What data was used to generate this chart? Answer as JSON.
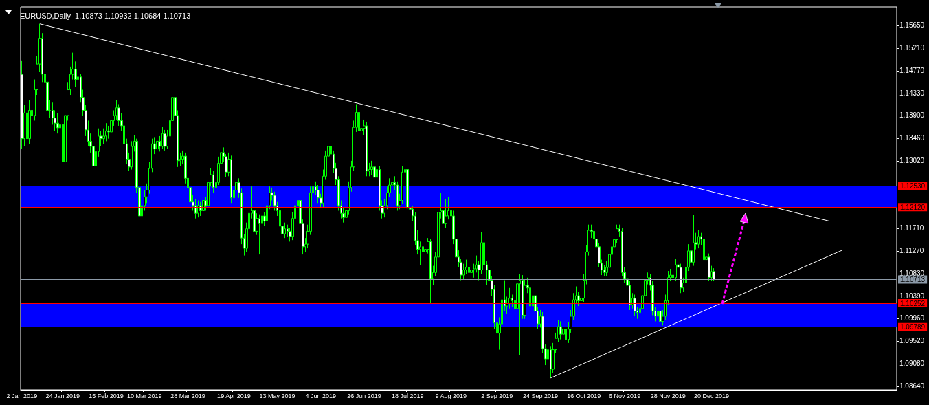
{
  "chart_data": {
    "type": "candlestick",
    "title": "EURUSD,Daily  1.10873 1.10932 1.10684 1.10713",
    "color": "#00ff00",
    "categories": [
      "2 Jan 2019",
      null,
      null,
      null,
      null,
      null,
      null,
      null,
      null,
      null,
      null,
      null,
      null,
      null,
      null,
      null,
      "24 Jan 2019",
      null,
      null,
      null,
      null,
      null,
      null,
      null,
      null,
      null,
      null,
      null,
      null,
      null,
      null,
      null,
      null,
      "15 Feb 2019",
      null,
      null,
      null,
      null,
      null,
      null,
      null,
      null,
      null,
      null,
      null,
      null,
      null,
      null,
      "10 Mar 2019",
      null,
      null,
      null,
      null,
      null,
      null,
      null,
      null,
      null,
      null,
      null,
      null,
      null,
      null,
      null,
      null,
      "28 Mar 2019",
      null,
      null,
      null,
      null,
      null,
      null,
      null,
      null,
      null,
      null,
      null,
      null,
      null,
      null,
      null,
      null,
      null,
      "19 Apr 2019",
      null,
      null,
      null,
      null,
      null,
      null,
      null,
      null,
      null,
      null,
      null,
      null,
      null,
      null,
      null,
      null,
      "13 May 2019",
      null,
      null,
      null,
      null,
      null,
      null,
      null,
      null,
      null,
      null,
      null,
      null,
      null,
      null,
      null,
      null,
      "4 Jun 2019",
      null,
      null,
      null,
      null,
      null,
      null,
      null,
      null,
      null,
      null,
      null,
      null,
      null,
      null,
      null,
      null,
      "26 Jun 2019",
      null,
      null,
      null,
      null,
      null,
      null,
      null,
      null,
      null,
      null,
      null,
      null,
      null,
      null,
      null,
      null,
      "18 Jul 2019",
      null,
      null,
      null,
      null,
      null,
      null,
      null,
      null,
      null,
      null,
      null,
      null,
      null,
      null,
      null,
      null,
      "9 Aug 2019",
      null,
      null,
      null,
      null,
      null,
      null,
      null,
      null,
      null,
      null,
      null,
      null,
      null,
      null,
      null,
      null,
      null,
      "2 Sep 2019",
      null,
      null,
      null,
      null,
      null,
      null,
      null,
      null,
      null,
      null,
      null,
      null,
      null,
      null,
      null,
      null,
      "24 Sep 2019",
      null,
      null,
      null,
      null,
      null,
      null,
      null,
      null,
      null,
      null,
      null,
      null,
      null,
      null,
      null,
      null,
      "16 Oct 2019",
      null,
      null,
      null,
      null,
      null,
      null,
      null,
      null,
      null,
      null,
      null,
      null,
      null,
      null,
      null,
      "6 Nov 2019",
      null,
      null,
      null,
      null,
      null,
      null,
      null,
      null,
      null,
      null,
      null,
      null,
      null,
      null,
      null,
      null,
      "28 Nov 2019",
      null,
      null,
      null,
      null,
      null,
      null,
      null,
      null,
      null,
      null,
      null,
      null,
      null,
      null,
      null,
      null,
      "20 Dec 2019",
      null,
      null,
      null,
      null,
      null,
      null,
      null,
      null,
      null,
      null,
      null,
      null,
      null,
      null,
      null,
      null,
      null,
      null,
      null,
      null,
      null,
      null,
      null,
      null,
      null,
      null,
      null,
      null,
      null,
      null,
      null,
      null,
      null,
      null,
      null,
      null,
      null,
      null,
      null,
      null,
      null,
      null,
      null,
      null,
      null,
      null,
      null,
      null,
      null,
      null,
      null,
      null,
      null,
      null,
      null,
      null,
      null,
      null,
      null,
      null,
      null,
      null,
      null,
      null,
      null,
      null,
      null,
      null,
      null,
      null,
      null,
      null
    ],
    "ohlc": [
      [
        1.147,
        1.1497,
        1.1325,
        1.1345
      ],
      [
        1.1345,
        1.141,
        1.133,
        1.1395
      ],
      [
        1.1395,
        1.1415,
        1.131,
        1.1345
      ],
      [
        1.1345,
        1.142,
        1.1335,
        1.14
      ],
      [
        1.14,
        1.1425,
        1.1375,
        1.139
      ],
      [
        1.139,
        1.146,
        1.138,
        1.144
      ],
      [
        1.144,
        1.1505,
        1.143,
        1.149
      ],
      [
        1.149,
        1.1568,
        1.1475,
        1.154
      ],
      [
        1.154,
        1.155,
        1.1455,
        1.147
      ],
      [
        1.147,
        1.149,
        1.144,
        1.1455
      ],
      [
        1.1455,
        1.1465,
        1.139,
        1.14
      ],
      [
        1.14,
        1.142,
        1.1385,
        1.14
      ],
      [
        1.14,
        1.1415,
        1.1372,
        1.1385
      ],
      [
        1.1385,
        1.14,
        1.136,
        1.1375
      ],
      [
        1.1375,
        1.1395,
        1.1355,
        1.1366
      ],
      [
        1.1366,
        1.139,
        1.135,
        1.1372
      ],
      [
        1.1372,
        1.1385,
        1.129,
        1.13
      ],
      [
        1.13,
        1.14,
        1.1295,
        1.139
      ],
      [
        1.139,
        1.1455,
        1.138,
        1.144
      ],
      [
        1.144,
        1.1485,
        1.143,
        1.147
      ],
      [
        1.147,
        1.1512,
        1.146,
        1.148
      ],
      [
        1.148,
        1.1495,
        1.1445,
        1.146
      ],
      [
        1.146,
        1.148,
        1.144,
        1.1465
      ],
      [
        1.1465,
        1.147,
        1.1415,
        1.1425
      ],
      [
        1.1425,
        1.144,
        1.139,
        1.14
      ],
      [
        1.14,
        1.141,
        1.135,
        1.1362
      ],
      [
        1.1362,
        1.138,
        1.133,
        1.134
      ],
      [
        1.134,
        1.1355,
        1.1318,
        1.133
      ],
      [
        1.133,
        1.134,
        1.128,
        1.1292
      ],
      [
        1.1292,
        1.133,
        1.1285,
        1.132
      ],
      [
        1.132,
        1.1365,
        1.131,
        1.135
      ],
      [
        1.135,
        1.136,
        1.133,
        1.1345
      ],
      [
        1.1345,
        1.1365,
        1.1335,
        1.135
      ],
      [
        1.135,
        1.1375,
        1.134,
        1.136
      ],
      [
        1.136,
        1.137,
        1.1345,
        1.1358
      ],
      [
        1.1358,
        1.1395,
        1.135,
        1.138
      ],
      [
        1.138,
        1.14,
        1.137,
        1.139
      ],
      [
        1.139,
        1.142,
        1.1382,
        1.1405
      ],
      [
        1.1405,
        1.1412,
        1.137,
        1.138
      ],
      [
        1.138,
        1.1395,
        1.136,
        1.137
      ],
      [
        1.137,
        1.1378,
        1.1325,
        1.1335
      ],
      [
        1.1335,
        1.1345,
        1.1295,
        1.1305
      ],
      [
        1.1305,
        1.1318,
        1.1282,
        1.129
      ],
      [
        1.129,
        1.134,
        1.1285,
        1.133
      ],
      [
        1.133,
        1.1352,
        1.132,
        1.134
      ],
      [
        1.134,
        1.1345,
        1.124,
        1.125
      ],
      [
        1.125,
        1.1262,
        1.1175,
        1.1195
      ],
      [
        1.1195,
        1.1228,
        1.1188,
        1.1215
      ],
      [
        1.1215,
        1.1245,
        1.1205,
        1.1232
      ],
      [
        1.1232,
        1.1258,
        1.122,
        1.1245
      ],
      [
        1.1245,
        1.13,
        1.1238,
        1.1287
      ],
      [
        1.1287,
        1.1345,
        1.128,
        1.1335
      ],
      [
        1.1335,
        1.1348,
        1.1315,
        1.1325
      ],
      [
        1.1325,
        1.1352,
        1.1318,
        1.134
      ],
      [
        1.134,
        1.135,
        1.132,
        1.133
      ],
      [
        1.133,
        1.1368,
        1.1325,
        1.1355
      ],
      [
        1.1355,
        1.1362,
        1.1322,
        1.133
      ],
      [
        1.133,
        1.1362,
        1.1325,
        1.135
      ],
      [
        1.135,
        1.1392,
        1.1342,
        1.138
      ],
      [
        1.138,
        1.1447,
        1.1372,
        1.1425
      ],
      [
        1.1425,
        1.144,
        1.138,
        1.139
      ],
      [
        1.139,
        1.14,
        1.129,
        1.1302
      ],
      [
        1.1302,
        1.1318,
        1.1292,
        1.1305
      ],
      [
        1.1305,
        1.1322,
        1.1295,
        1.1311
      ],
      [
        1.1311,
        1.1318,
        1.1258,
        1.1268
      ],
      [
        1.1268,
        1.128,
        1.124,
        1.125
      ],
      [
        1.125,
        1.1262,
        1.1212,
        1.1222
      ],
      [
        1.1222,
        1.1235,
        1.1205,
        1.1215
      ],
      [
        1.1215,
        1.1228,
        1.119,
        1.12
      ],
      [
        1.12,
        1.1225,
        1.1192,
        1.1215
      ],
      [
        1.1215,
        1.1222,
        1.1195,
        1.1205
      ],
      [
        1.1205,
        1.1238,
        1.1198,
        1.1225
      ],
      [
        1.1225,
        1.1232,
        1.1205,
        1.1215
      ],
      [
        1.1215,
        1.1272,
        1.121,
        1.126
      ],
      [
        1.126,
        1.1288,
        1.1252,
        1.1275
      ],
      [
        1.1275,
        1.1282,
        1.124,
        1.125
      ],
      [
        1.125,
        1.1272,
        1.1242,
        1.126
      ],
      [
        1.126,
        1.131,
        1.1255,
        1.1297
      ],
      [
        1.1297,
        1.133,
        1.129,
        1.1318
      ],
      [
        1.1318,
        1.1328,
        1.13,
        1.131
      ],
      [
        1.131,
        1.1315,
        1.127,
        1.128
      ],
      [
        1.128,
        1.1318,
        1.1272,
        1.1305
      ],
      [
        1.1305,
        1.1312,
        1.122,
        1.123
      ],
      [
        1.123,
        1.1255,
        1.1222,
        1.1245
      ],
      [
        1.1245,
        1.1272,
        1.1238,
        1.126
      ],
      [
        1.126,
        1.1268,
        1.123,
        1.124
      ],
      [
        1.124,
        1.1248,
        1.114,
        1.1152
      ],
      [
        1.1152,
        1.116,
        1.1118,
        1.1132
      ],
      [
        1.1132,
        1.1182,
        1.1125,
        1.117
      ],
      [
        1.117,
        1.1212,
        1.1162,
        1.12
      ],
      [
        1.12,
        1.1252,
        1.119,
        1.1205
      ],
      [
        1.1205,
        1.1212,
        1.1155,
        1.1165
      ],
      [
        1.1165,
        1.12,
        1.1158,
        1.119
      ],
      [
        1.119,
        1.1198,
        1.112,
        1.118
      ],
      [
        1.118,
        1.1208,
        1.1172,
        1.1195
      ],
      [
        1.1195,
        1.1202,
        1.1175,
        1.1185
      ],
      [
        1.1185,
        1.1228,
        1.1178,
        1.1215
      ],
      [
        1.1215,
        1.1252,
        1.1208,
        1.124
      ],
      [
        1.124,
        1.125,
        1.1225,
        1.1235
      ],
      [
        1.1235,
        1.1242,
        1.1205,
        1.1215
      ],
      [
        1.1215,
        1.1222,
        1.1195,
        1.1205
      ],
      [
        1.1205,
        1.1212,
        1.1165,
        1.1175
      ],
      [
        1.1175,
        1.1182,
        1.115,
        1.116
      ],
      [
        1.116,
        1.1182,
        1.1152,
        1.117
      ],
      [
        1.117,
        1.1178,
        1.1155,
        1.1165
      ],
      [
        1.1165,
        1.1172,
        1.1145,
        1.1155
      ],
      [
        1.1155,
        1.1202,
        1.1148,
        1.119
      ],
      [
        1.119,
        1.1228,
        1.1182,
        1.1215
      ],
      [
        1.1215,
        1.1238,
        1.1208,
        1.1225
      ],
      [
        1.1225,
        1.1232,
        1.117,
        1.118
      ],
      [
        1.118,
        1.1188,
        1.112,
        1.1135
      ],
      [
        1.1135,
        1.1152,
        1.1125,
        1.114
      ],
      [
        1.114,
        1.1178,
        1.1132,
        1.1165
      ],
      [
        1.1165,
        1.1252,
        1.1158,
        1.124
      ],
      [
        1.124,
        1.1268,
        1.1232,
        1.1252
      ],
      [
        1.1252,
        1.1262,
        1.1235,
        1.1245
      ],
      [
        1.1245,
        1.1255,
        1.122,
        1.123
      ],
      [
        1.123,
        1.1238,
        1.121,
        1.122
      ],
      [
        1.122,
        1.1285,
        1.1212,
        1.1272
      ],
      [
        1.1272,
        1.1322,
        1.1265,
        1.1311
      ],
      [
        1.1311,
        1.1345,
        1.1302,
        1.133
      ],
      [
        1.133,
        1.134,
        1.1305,
        1.1315
      ],
      [
        1.1315,
        1.1322,
        1.1278,
        1.1287
      ],
      [
        1.1287,
        1.1298,
        1.1255,
        1.1265
      ],
      [
        1.1265,
        1.1272,
        1.1205,
        1.1215
      ],
      [
        1.1215,
        1.1225,
        1.119,
        1.12
      ],
      [
        1.12,
        1.121,
        1.1182,
        1.1192
      ],
      [
        1.1192,
        1.1218,
        1.1185,
        1.1205
      ],
      [
        1.1205,
        1.1262,
        1.1198,
        1.125
      ],
      [
        1.125,
        1.1302,
        1.1242,
        1.129
      ],
      [
        1.129,
        1.138,
        1.1282,
        1.1367
      ],
      [
        1.1367,
        1.1412,
        1.1358,
        1.1396
      ],
      [
        1.1396,
        1.1402,
        1.135,
        1.136
      ],
      [
        1.136,
        1.1378,
        1.1345,
        1.1365
      ],
      [
        1.1365,
        1.1382,
        1.1352,
        1.137
      ],
      [
        1.137,
        1.1378,
        1.1272,
        1.1282
      ],
      [
        1.1282,
        1.1298,
        1.1272,
        1.1285
      ],
      [
        1.1285,
        1.1302,
        1.1275,
        1.129
      ],
      [
        1.129,
        1.1298,
        1.126,
        1.127
      ],
      [
        1.127,
        1.1298,
        1.1262,
        1.1285
      ],
      [
        1.1285,
        1.1292,
        1.1205,
        1.1215
      ],
      [
        1.1215,
        1.1225,
        1.119,
        1.12
      ],
      [
        1.12,
        1.1228,
        1.1192,
        1.1215
      ],
      [
        1.1215,
        1.1252,
        1.1208,
        1.124
      ],
      [
        1.124,
        1.1268,
        1.1232,
        1.1255
      ],
      [
        1.1255,
        1.1275,
        1.1248,
        1.126
      ],
      [
        1.126,
        1.1272,
        1.1245,
        1.1255
      ],
      [
        1.1255,
        1.1262,
        1.1205,
        1.1215
      ],
      [
        1.1215,
        1.1238,
        1.1208,
        1.1225
      ],
      [
        1.1225,
        1.1292,
        1.1218,
        1.128
      ],
      [
        1.128,
        1.1292,
        1.1272,
        1.1285
      ],
      [
        1.1285,
        1.1292,
        1.12,
        1.121
      ],
      [
        1.121,
        1.1222,
        1.1198,
        1.1208
      ],
      [
        1.1208,
        1.1215,
        1.1185,
        1.1195
      ],
      [
        1.1195,
        1.1202,
        1.1138,
        1.1147
      ],
      [
        1.1147,
        1.1168,
        1.112,
        1.113
      ],
      [
        1.113,
        1.1145,
        1.11,
        1.1135
      ],
      [
        1.1135,
        1.1142,
        1.1115,
        1.1125
      ],
      [
        1.1125,
        1.1142,
        1.1118,
        1.113
      ],
      [
        1.113,
        1.1152,
        1.1122,
        1.1145
      ],
      [
        1.1145,
        1.115,
        1.1026,
        1.1072
      ],
      [
        1.1072,
        1.1098,
        1.106,
        1.1085
      ],
      [
        1.1085,
        1.1125,
        1.1078,
        1.1115
      ],
      [
        1.1115,
        1.1248,
        1.1108,
        1.1202
      ],
      [
        1.1202,
        1.124,
        1.119,
        1.1205
      ],
      [
        1.1205,
        1.123,
        1.1172,
        1.118
      ],
      [
        1.118,
        1.1228,
        1.1172,
        1.1195
      ],
      [
        1.1195,
        1.1232,
        1.1188,
        1.1205
      ],
      [
        1.1205,
        1.124,
        1.1185,
        1.1195
      ],
      [
        1.1195,
        1.1205,
        1.114,
        1.115
      ],
      [
        1.115,
        1.1162,
        1.1105,
        1.1115
      ],
      [
        1.1115,
        1.1128,
        1.1095,
        1.1105
      ],
      [
        1.1105,
        1.1112,
        1.107,
        1.108
      ],
      [
        1.108,
        1.1102,
        1.1072,
        1.109
      ],
      [
        1.109,
        1.111,
        1.1082,
        1.1095
      ],
      [
        1.1095,
        1.1102,
        1.1075,
        1.1085
      ],
      [
        1.1085,
        1.1105,
        1.1078,
        1.109
      ],
      [
        1.109,
        1.1102,
        1.1075,
        1.1092
      ],
      [
        1.1092,
        1.1118,
        1.1085,
        1.11
      ],
      [
        1.11,
        1.1108,
        1.107,
        1.109
      ],
      [
        1.109,
        1.1163,
        1.1082,
        1.1143
      ],
      [
        1.1143,
        1.115,
        1.1092,
        1.11
      ],
      [
        1.11,
        1.1108,
        1.106,
        1.109
      ],
      [
        1.109,
        1.1098,
        1.1062,
        1.107
      ],
      [
        1.107,
        1.1078,
        1.104,
        1.1052
      ],
      [
        1.1052,
        1.106,
        1.0975,
        1.0987
      ],
      [
        1.0987,
        1.0995,
        1.0955,
        1.0967
      ],
      [
        1.0967,
        1.0998,
        1.0935,
        1.0985
      ],
      [
        1.0985,
        1.1045,
        1.0978,
        1.1032
      ],
      [
        1.1032,
        1.107,
        1.101,
        1.102
      ],
      [
        1.102,
        1.1038,
        1.1005,
        1.1025
      ],
      [
        1.1025,
        1.1055,
        1.1015,
        1.1035
      ],
      [
        1.1035,
        1.1042,
        1.1018,
        1.103
      ],
      [
        1.103,
        1.104,
        1.1,
        1.1015
      ],
      [
        1.1015,
        1.1092,
        1.1008,
        1.1063
      ],
      [
        1.1063,
        1.1082,
        1.0925,
        1.107
      ],
      [
        1.107,
        1.108,
        1.0995,
        1.1002
      ],
      [
        1.1002,
        1.1072,
        1.0995,
        1.106
      ],
      [
        1.106,
        1.1075,
        1.1045,
        1.1055
      ],
      [
        1.1055,
        1.107,
        1.101,
        1.102
      ],
      [
        1.102,
        1.1052,
        1.1012,
        1.104
      ],
      [
        1.104,
        1.1048,
        1.0998,
        1.101
      ],
      [
        1.101,
        1.1018,
        1.0975,
        1.0985
      ],
      [
        1.0985,
        1.1012,
        1.0978,
        1.1
      ],
      [
        1.1,
        1.1008,
        1.0928,
        1.0937
      ],
      [
        1.0937,
        1.0945,
        1.0905,
        1.0917
      ],
      [
        1.0917,
        1.0948,
        1.0908,
        1.0935
      ],
      [
        1.0935,
        1.0942,
        1.088,
        1.0897
      ],
      [
        1.0897,
        1.0948,
        1.089,
        1.0935
      ],
      [
        1.0935,
        1.0968,
        1.0928,
        1.0957
      ],
      [
        1.0957,
        1.0992,
        1.095,
        1.098
      ],
      [
        1.098,
        1.099,
        1.0955,
        1.0965
      ],
      [
        1.0965,
        1.0988,
        1.0958,
        1.0975
      ],
      [
        1.0975,
        1.0985,
        1.0945,
        1.0955
      ],
      [
        1.0955,
        1.0988,
        1.0948,
        1.0975
      ],
      [
        1.0975,
        1.1012,
        1.0968,
        1.1
      ],
      [
        1.1,
        1.1045,
        1.0992,
        1.1032
      ],
      [
        1.1032,
        1.1058,
        1.1025,
        1.104
      ],
      [
        1.104,
        1.1048,
        1.102,
        1.103
      ],
      [
        1.103,
        1.1048,
        1.1022,
        1.1035
      ],
      [
        1.1035,
        1.1082,
        1.1028,
        1.107
      ],
      [
        1.107,
        1.1138,
        1.1062,
        1.1125
      ],
      [
        1.1125,
        1.1178,
        1.1118,
        1.1167
      ],
      [
        1.1167,
        1.1178,
        1.1152,
        1.1165
      ],
      [
        1.1165,
        1.1172,
        1.114,
        1.115
      ],
      [
        1.115,
        1.116,
        1.1125,
        1.1135
      ],
      [
        1.1135,
        1.1142,
        1.1095,
        1.1103
      ],
      [
        1.1103,
        1.111,
        1.108,
        1.109
      ],
      [
        1.109,
        1.11,
        1.1078,
        1.1085
      ],
      [
        1.1085,
        1.1108,
        1.1078,
        1.1095
      ],
      [
        1.1095,
        1.1132,
        1.1088,
        1.112
      ],
      [
        1.112,
        1.1148,
        1.1112,
        1.1135
      ],
      [
        1.1135,
        1.1162,
        1.1128,
        1.1149
      ],
      [
        1.1149,
        1.1178,
        1.1142,
        1.117
      ],
      [
        1.117,
        1.1178,
        1.1155,
        1.1165
      ],
      [
        1.1165,
        1.1172,
        1.1078,
        1.1085
      ],
      [
        1.1085,
        1.1095,
        1.1065,
        1.1072
      ],
      [
        1.1072,
        1.108,
        1.105,
        1.106
      ],
      [
        1.106,
        1.1068,
        1.1012,
        1.1022
      ],
      [
        1.1022,
        1.1045,
        1.1015,
        1.1035
      ],
      [
        1.1035,
        1.1042,
        1.1,
        1.101
      ],
      [
        1.101,
        1.1018,
        1.0995,
        1.1007
      ],
      [
        1.1007,
        1.1025,
        1.099,
        1.1015
      ],
      [
        1.1015,
        1.1052,
        1.1008,
        1.104
      ],
      [
        1.104,
        1.1082,
        1.1032,
        1.107
      ],
      [
        1.107,
        1.1085,
        1.1062,
        1.1075
      ],
      [
        1.1075,
        1.1082,
        1.105,
        1.106
      ],
      [
        1.106,
        1.1068,
        1.1002,
        1.101
      ],
      [
        1.101,
        1.1018,
        1.099,
        1.1
      ],
      [
        1.1,
        1.102,
        1.0992,
        1.101
      ],
      [
        1.101,
        1.1018,
        1.0976,
        1.099
      ],
      [
        1.099,
        1.1012,
        1.0982,
        1.1
      ],
      [
        1.1,
        1.1042,
        1.0992,
        1.103
      ],
      [
        1.103,
        1.1088,
        1.1022,
        1.1075
      ],
      [
        1.1075,
        1.1092,
        1.1068,
        1.108
      ],
      [
        1.108,
        1.1088,
        1.1065,
        1.1075
      ],
      [
        1.1075,
        1.1112,
        1.1068,
        1.11
      ],
      [
        1.11,
        1.1108,
        1.1085,
        1.1095
      ],
      [
        1.1095,
        1.1102,
        1.1045,
        1.1055
      ],
      [
        1.1055,
        1.1075,
        1.1048,
        1.1065
      ],
      [
        1.1065,
        1.1108,
        1.1058,
        1.1095
      ],
      [
        1.1095,
        1.114,
        1.1088,
        1.1127
      ],
      [
        1.1127,
        1.1135,
        1.1095,
        1.1105
      ],
      [
        1.1105,
        1.1197,
        1.1098,
        1.1143
      ],
      [
        1.1143,
        1.1162,
        1.113,
        1.114
      ],
      [
        1.114,
        1.1168,
        1.1132,
        1.1155
      ],
      [
        1.1155,
        1.1162,
        1.1138,
        1.115
      ],
      [
        1.115,
        1.1158,
        1.11,
        1.111
      ],
      [
        1.111,
        1.1128,
        1.1102,
        1.1115
      ],
      [
        1.1115,
        1.1122,
        1.1068,
        1.1075
      ],
      [
        1.1075,
        1.1098,
        1.1068,
        1.1087
      ],
      [
        1.10873,
        1.10932,
        1.10684,
        1.10713
      ],
      null,
      null,
      null,
      null,
      null,
      null,
      null,
      null,
      null,
      null,
      null,
      null,
      null,
      null,
      null,
      null,
      null,
      null,
      null,
      null,
      null,
      null,
      null,
      null,
      null,
      null,
      null,
      null,
      null,
      null,
      null,
      null,
      null,
      null,
      null,
      null,
      null,
      null,
      null,
      null,
      null,
      null,
      null,
      null,
      null,
      null,
      null,
      null,
      null,
      null,
      null,
      null,
      null,
      null,
      null,
      null,
      null,
      null,
      null,
      null,
      null,
      null,
      null,
      null,
      null,
      null,
      null,
      null,
      null,
      null,
      null
    ],
    "series": [
      {
        "type": "line",
        "color": "#ffffff",
        "values": [
          null,
          null,
          null,
          null,
          null,
          null,
          null,
          1.1568,
          null,
          null,
          null,
          null,
          null,
          null,
          null,
          null,
          null,
          null,
          null,
          null,
          null,
          null,
          null,
          null,
          null,
          null,
          null,
          null,
          null,
          null,
          null,
          null,
          null,
          null,
          null,
          null,
          null,
          null,
          null,
          null,
          null,
          null,
          null,
          null,
          null,
          null,
          null,
          null,
          null,
          null,
          null,
          null,
          null,
          null,
          null,
          null,
          null,
          null,
          null,
          null,
          null,
          null,
          null,
          null,
          null,
          null,
          null,
          null,
          null,
          null,
          null,
          null,
          null,
          null,
          null,
          null,
          null,
          null,
          null,
          null,
          null,
          null,
          null,
          null,
          null,
          null,
          null,
          null,
          null,
          null,
          null,
          null,
          null,
          null,
          null,
          null,
          null,
          null,
          null,
          null,
          null,
          null,
          null,
          null,
          null,
          null,
          null,
          null,
          null,
          null,
          null,
          null,
          null,
          null,
          null,
          null,
          null,
          null,
          null,
          null,
          null,
          null,
          null,
          null,
          null,
          null,
          null,
          null,
          null,
          null,
          null,
          null,
          null,
          null,
          null,
          null,
          null,
          null,
          null,
          null,
          null,
          null,
          null,
          null,
          null,
          null,
          null,
          null,
          null,
          null,
          null,
          null,
          null,
          null,
          null,
          null,
          null,
          null,
          null,
          null,
          null,
          null,
          null,
          null,
          null,
          null,
          null,
          null,
          null,
          null,
          null,
          null,
          null,
          null,
          null,
          null,
          null,
          null,
          null,
          null,
          null,
          null,
          null,
          null,
          null,
          null,
          null,
          null,
          null,
          null,
          null,
          null,
          null,
          null,
          null,
          null,
          null,
          null,
          null,
          null,
          null,
          null,
          null,
          null,
          null,
          null,
          null,
          null,
          null,
          null,
          null,
          null,
          null,
          null,
          null,
          null,
          null,
          null,
          null,
          null,
          null,
          null,
          null,
          null,
          null,
          null,
          null,
          null,
          null,
          null,
          null,
          null,
          null,
          null,
          null,
          null,
          null,
          null,
          null,
          null,
          null,
          null,
          null,
          null,
          null,
          null,
          null,
          null,
          null,
          null,
          null,
          null,
          null,
          null,
          null,
          null,
          null,
          null,
          null,
          null,
          null,
          null,
          null,
          null,
          null,
          null,
          null,
          null,
          null,
          null,
          null,
          null,
          null,
          null,
          null,
          null,
          null,
          null,
          null,
          null,
          null,
          null,
          null,
          null,
          null,
          null,
          null,
          null,
          null,
          null,
          null,
          null,
          null,
          null,
          null,
          null,
          null,
          null,
          null,
          null,
          null,
          null,
          null,
          null,
          null,
          null,
          null,
          null,
          null,
          null,
          null,
          null,
          null,
          null,
          null,
          null,
          1.1185,
          null,
          null,
          null,
          null,
          null,
          null,
          null,
          null,
          null,
          null,
          null,
          null,
          null,
          null,
          null,
          null,
          null,
          null,
          null,
          null,
          null,
          null,
          null,
          null,
          null,
          null
        ]
      },
      {
        "type": "line",
        "color": "#ffffff",
        "values": [
          null,
          null,
          null,
          null,
          null,
          null,
          null,
          null,
          null,
          null,
          null,
          null,
          null,
          null,
          null,
          null,
          null,
          null,
          null,
          null,
          null,
          null,
          null,
          null,
          null,
          null,
          null,
          null,
          null,
          null,
          null,
          null,
          null,
          null,
          null,
          null,
          null,
          null,
          null,
          null,
          null,
          null,
          null,
          null,
          null,
          null,
          null,
          null,
          null,
          null,
          null,
          null,
          null,
          null,
          null,
          null,
          null,
          null,
          null,
          null,
          null,
          null,
          null,
          null,
          null,
          null,
          null,
          null,
          null,
          null,
          null,
          null,
          null,
          null,
          null,
          null,
          null,
          null,
          null,
          null,
          null,
          null,
          null,
          null,
          null,
          null,
          null,
          null,
          null,
          null,
          null,
          null,
          null,
          null,
          null,
          null,
          null,
          null,
          null,
          null,
          null,
          null,
          null,
          null,
          null,
          null,
          null,
          null,
          null,
          null,
          null,
          null,
          null,
          null,
          null,
          null,
          null,
          null,
          null,
          null,
          null,
          null,
          null,
          null,
          null,
          null,
          null,
          null,
          null,
          null,
          null,
          null,
          null,
          null,
          null,
          null,
          null,
          null,
          null,
          null,
          null,
          null,
          null,
          null,
          null,
          null,
          null,
          null,
          null,
          null,
          null,
          null,
          null,
          null,
          null,
          null,
          null,
          null,
          null,
          null,
          null,
          null,
          null,
          null,
          null,
          null,
          null,
          null,
          null,
          null,
          null,
          null,
          null,
          null,
          null,
          null,
          null,
          null,
          null,
          null,
          null,
          null,
          null,
          null,
          null,
          null,
          null,
          null,
          null,
          null,
          null,
          null,
          null,
          null,
          null,
          null,
          null,
          null,
          null,
          null,
          null,
          null,
          null,
          null,
          null,
          null,
          null,
          1.088,
          null,
          null,
          null,
          null,
          null,
          null,
          null,
          null,
          null,
          null,
          null,
          null,
          null,
          null,
          null,
          null,
          null,
          null,
          null,
          null,
          null,
          null,
          null,
          null,
          null,
          null,
          null,
          null,
          null,
          null,
          null,
          null,
          null,
          null,
          null,
          null,
          null,
          null,
          null,
          null,
          null,
          null,
          null,
          null,
          null,
          null,
          null,
          null,
          null,
          null,
          null,
          null,
          null,
          null,
          null,
          null,
          null,
          null,
          null,
          null,
          null,
          null,
          null,
          null,
          null,
          null,
          null,
          null,
          null,
          null,
          null,
          null,
          null,
          null,
          null,
          null,
          null,
          null,
          null,
          null,
          null,
          null,
          null,
          null,
          null,
          null,
          null,
          null,
          null,
          null,
          null,
          null,
          null,
          null,
          null,
          null,
          null,
          null,
          null,
          null,
          null,
          null,
          null,
          null,
          null,
          null,
          null,
          null,
          null,
          null,
          null,
          null,
          null,
          1.1128,
          null,
          null,
          null,
          null,
          null,
          null,
          null,
          null,
          null,
          null,
          null,
          null,
          null,
          null,
          null,
          null,
          null,
          null,
          null,
          null,
          null
        ]
      }
    ],
    "ylim": [
      1.0857,
      1.1601
    ],
    "yticks": [
      {
        "value": 1.0864,
        "label": "1.08640"
      },
      {
        "value": 1.0908,
        "label": "1.09080"
      },
      {
        "value": 1.0952,
        "label": "1.09520"
      },
      {
        "value": 1.0996,
        "label": "1.09960"
      },
      {
        "value": 1.1039,
        "label": "1.10390"
      },
      {
        "value": 1.1083,
        "label": "1.10830"
      },
      {
        "value": 1.1127,
        "label": "1.11270"
      },
      {
        "value": 1.1171,
        "label": "1.11710"
      },
      {
        "value": 1.1302,
        "label": "1.13020"
      },
      {
        "value": 1.1346,
        "label": "1.13460"
      },
      {
        "value": 1.139,
        "label": "1.13900"
      },
      {
        "value": 1.1433,
        "label": "1.14330"
      },
      {
        "value": 1.1477,
        "label": "1.14770"
      },
      {
        "value": 1.1521,
        "label": "1.15210"
      },
      {
        "value": 1.1565,
        "label": "1.15650"
      }
    ],
    "ref_lines": [
      {
        "axis": "y",
        "value": 1.1253,
        "label": "1.12530",
        "color": "#ff0000"
      },
      {
        "axis": "y",
        "value": 1.1212,
        "label": "1.12120",
        "color": "#ff0000"
      },
      {
        "axis": "y",
        "value": 1.10713,
        "label": "1.10713",
        "color": "#8c9aa8"
      },
      {
        "axis": "y",
        "value": 1.10252,
        "label": "1.10252",
        "color": "#ff0000"
      },
      {
        "axis": "y",
        "value": 1.09789,
        "label": "1.09789",
        "color": "#ff0000"
      }
    ],
    "bands": [
      {
        "axis": "y",
        "from": 1.1212,
        "to": 1.1253,
        "color": "#0000ff"
      },
      {
        "axis": "y",
        "from": 1.09789,
        "to": 1.10252,
        "color": "#0000ff"
      }
    ],
    "grid": false
  }
}
